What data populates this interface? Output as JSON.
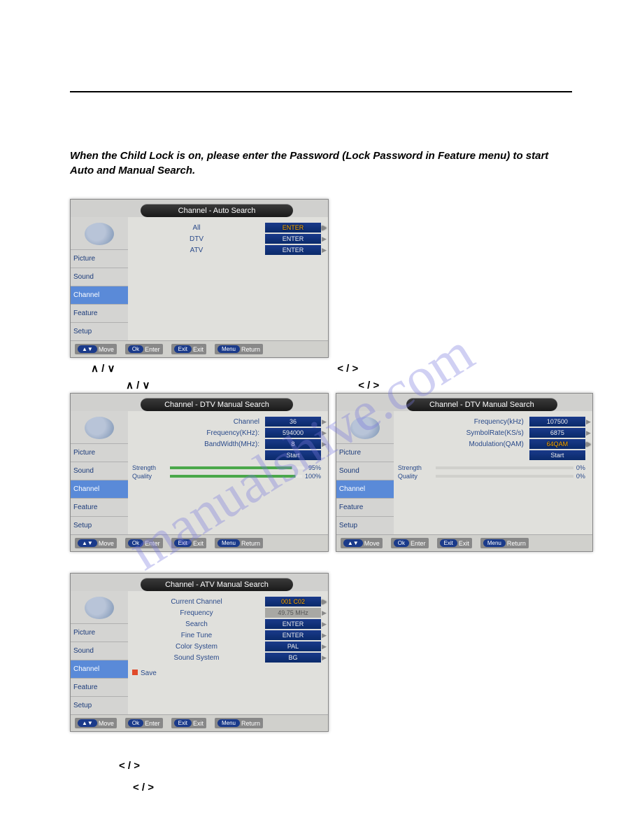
{
  "instruction": "When the Child Lock is on, please enter the Password (Lock Password in Feature menu) to start Auto and Manual Search.",
  "watermark": "manualshive.com",
  "sidebar": {
    "items": [
      "Picture",
      "Sound",
      "Channel",
      "Feature",
      "Setup"
    ],
    "active": "Channel"
  },
  "footer": {
    "move": "Move",
    "ok": "Ok",
    "enter": "Enter",
    "exit_btn": "Exit",
    "exit": "Exit",
    "menu": "Menu",
    "return": "Return"
  },
  "auto_search": {
    "title": "Channel - Auto Search",
    "rows": [
      {
        "label": "All",
        "value": "ENTER",
        "sel": true
      },
      {
        "label": "DTV",
        "value": "ENTER",
        "sel": false
      },
      {
        "label": "ATV",
        "value": "ENTER",
        "sel": false
      }
    ]
  },
  "arrows": {
    "up_down": "∧ / ∨",
    "left_right": "< / >"
  },
  "dtv_left": {
    "title": "Channel - DTV Manual Search",
    "rows": [
      {
        "label": "Channel",
        "value": "36"
      },
      {
        "label": "Frequency(KHz):",
        "value": "594000"
      },
      {
        "label": "BandWidth(MHz):",
        "value": "8"
      }
    ],
    "start": "Start",
    "strength_label": "Strength",
    "strength_val": "95%",
    "quality_label": "Quality",
    "quality_val": "100%"
  },
  "dtv_right": {
    "title": "Channel - DTV Manual Search",
    "rows": [
      {
        "label": "Frequency(kHz)",
        "value": "107500"
      },
      {
        "label": "SymbolRate(KS/s)",
        "value": "6875"
      },
      {
        "label": "Modulation(QAM)",
        "value": "64QAM",
        "sel": true
      }
    ],
    "start": "Start",
    "strength_label": "Strength",
    "strength_val": "0%",
    "quality_label": "Quality",
    "quality_val": "0%"
  },
  "atv": {
    "title": "Channel - ATV Manual Search",
    "rows": [
      {
        "label": "Current Channel",
        "value": "001        C02",
        "sel": true
      },
      {
        "label": "Frequency",
        "value": "49.75 MHz",
        "grey": true
      },
      {
        "label": "Search",
        "value": "ENTER"
      },
      {
        "label": "Fine Tune",
        "value": "ENTER"
      },
      {
        "label": "Color System",
        "value": "PAL"
      },
      {
        "label": "Sound System",
        "value": "BG"
      }
    ],
    "save": "Save"
  }
}
